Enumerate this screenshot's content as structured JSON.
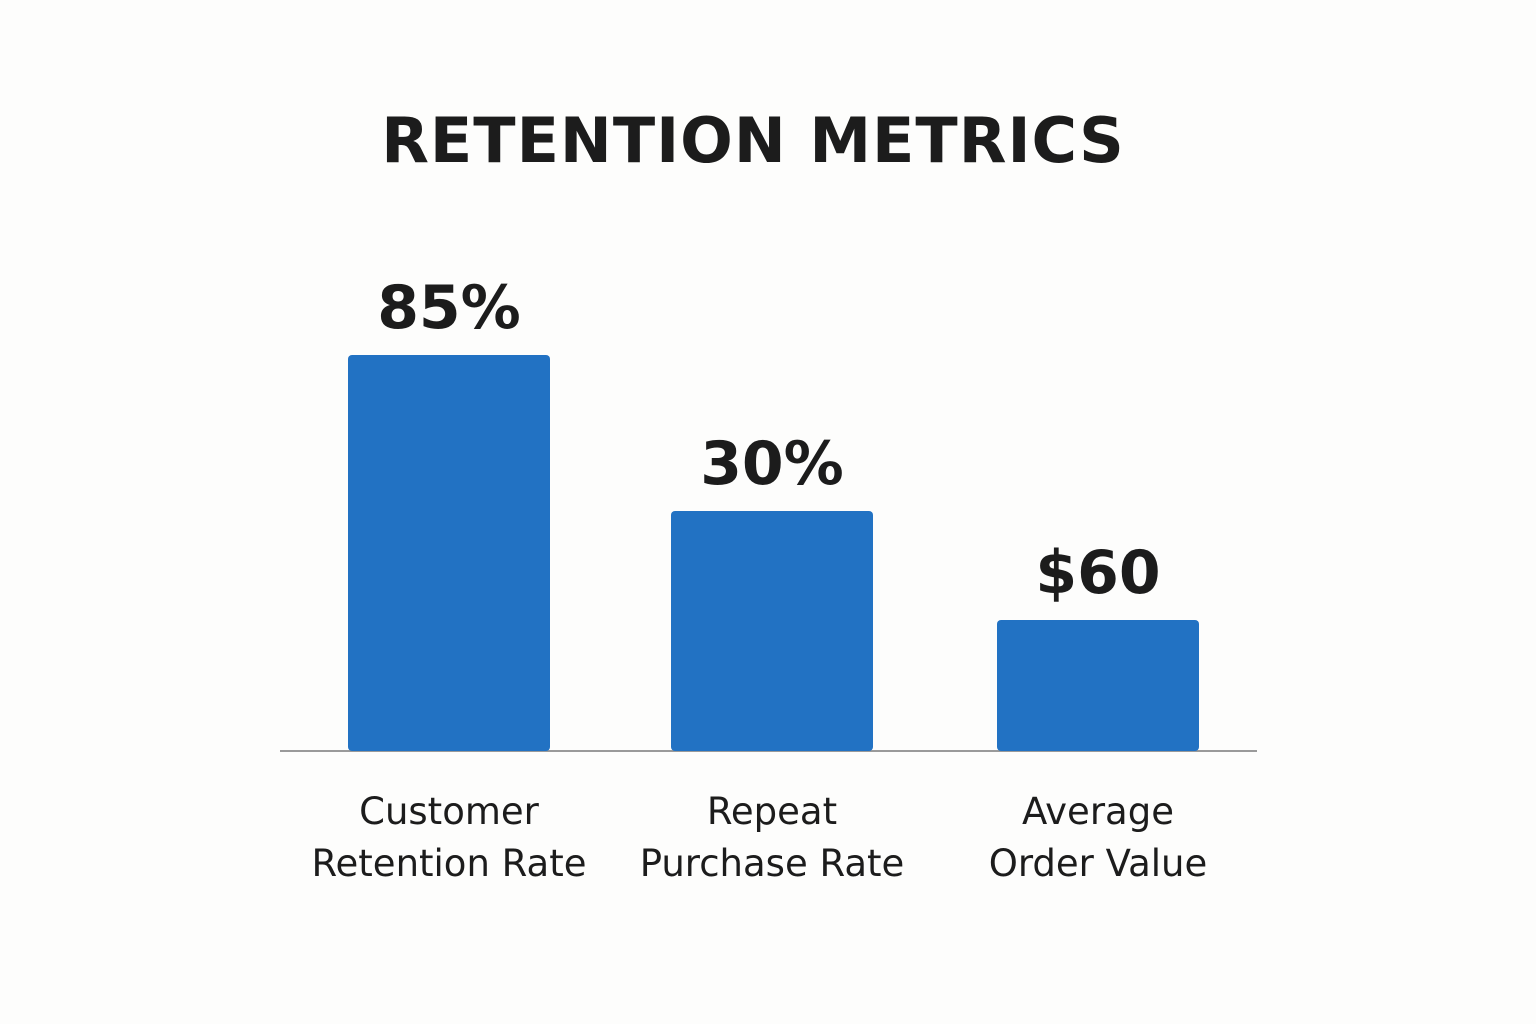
{
  "chart_data": {
    "type": "bar",
    "title": "RETENTION METRICS",
    "categories": [
      [
        "Customer",
        "Retention Rate"
      ],
      [
        "Repeat",
        "Purchase Rate"
      ],
      [
        "Average",
        "Order Value"
      ]
    ],
    "values": [
      85,
      30,
      60
    ],
    "value_labels": [
      "85%",
      "30%",
      "$60"
    ],
    "grid": false,
    "legend": "none",
    "colors": {
      "bar": "#2272c3",
      "axis": "#9a9a9a",
      "text": "#1c1c1c",
      "background": "#fdfdfc"
    }
  }
}
